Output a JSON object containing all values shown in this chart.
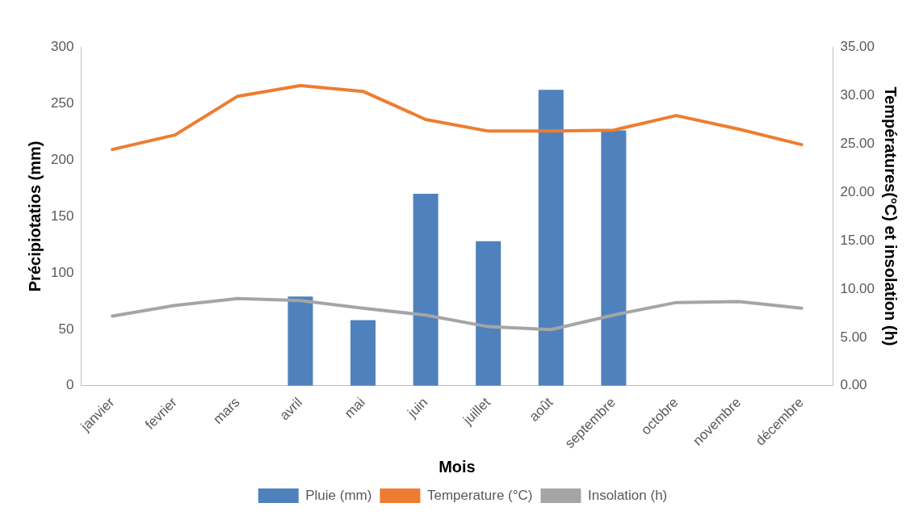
{
  "chart_data": {
    "type": "bar",
    "xlabel": "Mois",
    "ylabel": "Précipiotatios (mm)",
    "y2label": "Températures(°C) et insolation (h)",
    "categories": [
      "janvier",
      "fevrier",
      "mars",
      "avril",
      "mai",
      "juin",
      "juillet",
      "août",
      "septembre",
      "octobre",
      "novembre",
      "décembre"
    ],
    "series": [
      {
        "name": "Pluie (mm)",
        "color": "#4f81bd",
        "values": [
          null,
          null,
          null,
          79,
          58,
          170,
          128,
          262,
          226,
          null,
          null,
          null
        ]
      },
      {
        "name": "Temperature (°C)",
        "type": "line",
        "axis": "y2",
        "color": "#ed7d31",
        "values": [
          24.4,
          25.9,
          29.9,
          31.0,
          30.4,
          27.5,
          26.3,
          26.3,
          26.4,
          27.9,
          26.5,
          24.9
        ]
      },
      {
        "name": "Insolation (h)",
        "type": "line",
        "axis": "y2",
        "color": "#a5a5a5",
        "values": [
          7.2,
          8.3,
          9.0,
          8.8,
          8.0,
          7.3,
          6.1,
          5.8,
          7.3,
          8.6,
          8.7,
          8.0
        ]
      }
    ],
    "ylim": [
      0,
      300
    ],
    "yticks": [
      0,
      50,
      100,
      150,
      200,
      250,
      300
    ],
    "y2lim": [
      0,
      35
    ],
    "y2ticks": [
      {
        "value": 0,
        "label": "0.00"
      },
      {
        "value": 5,
        "label": "5.00"
      },
      {
        "value": 10,
        "label": "10.00"
      },
      {
        "value": 15,
        "label": "15.00"
      },
      {
        "value": 20,
        "label": "20.00"
      },
      {
        "value": 25,
        "label": "25.00"
      },
      {
        "value": 30,
        "label": "30.00"
      },
      {
        "value": 35,
        "label": "35.00"
      }
    ],
    "grid": false,
    "legend": "bottom",
    "marker": "none",
    "line_style": "solid"
  }
}
